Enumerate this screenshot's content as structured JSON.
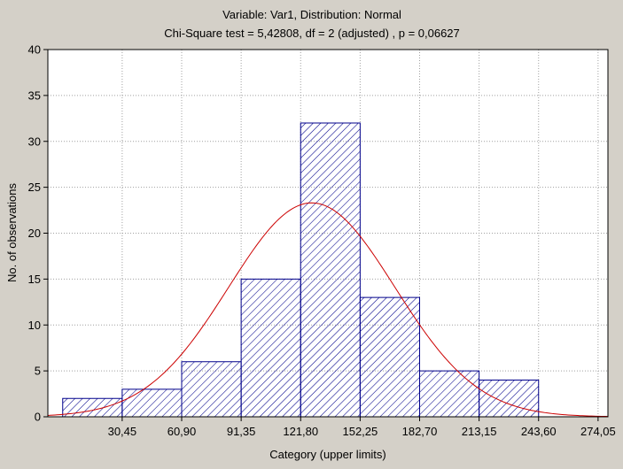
{
  "chart_data": {
    "type": "bar",
    "title": "Variable: Var1, Distribution: Normal",
    "subtitle": "Chi-Square test = 5,42808, df = 2 (adjusted) , p = 0,06627",
    "xlabel": "Category (upper limits)",
    "ylabel": "No. of observations",
    "xlim": [
      -7.6,
      279.1
    ],
    "ylim": [
      0,
      40
    ],
    "x_ticks": [
      30.45,
      60.9,
      91.35,
      121.8,
      152.25,
      182.7,
      213.15,
      243.6,
      274.05
    ],
    "x_tick_labels": [
      "30,45",
      "60,90",
      "91,35",
      "121,80",
      "152,25",
      "182,70",
      "213,15",
      "243,60",
      "274,05"
    ],
    "y_ticks": [
      0,
      5,
      10,
      15,
      20,
      25,
      30,
      35,
      40
    ],
    "y_tick_labels": [
      "0",
      "5",
      "10",
      "15",
      "20",
      "25",
      "30",
      "35",
      "40"
    ],
    "bins": [
      {
        "from": 0.0,
        "to": 30.45,
        "value": 2
      },
      {
        "from": 30.45,
        "to": 60.9,
        "value": 3
      },
      {
        "from": 60.9,
        "to": 91.35,
        "value": 6
      },
      {
        "from": 91.35,
        "to": 121.8,
        "value": 15
      },
      {
        "from": 121.8,
        "to": 152.25,
        "value": 32
      },
      {
        "from": 152.25,
        "to": 182.7,
        "value": 13
      },
      {
        "from": 182.7,
        "to": 213.15,
        "value": 5
      },
      {
        "from": 213.15,
        "to": 243.6,
        "value": 4
      }
    ],
    "fit": {
      "distribution": "Normal",
      "mean": 127.5,
      "sd": 42.5,
      "peak": 23.3
    },
    "grid": true,
    "colors": {
      "background": "#d4d0c8",
      "plot_area": "#ffffff",
      "bar_stroke": "#00008b",
      "bar_hatch": "#00008b",
      "fit_curve": "#cc0000",
      "grid": "#a0a0a0"
    }
  }
}
